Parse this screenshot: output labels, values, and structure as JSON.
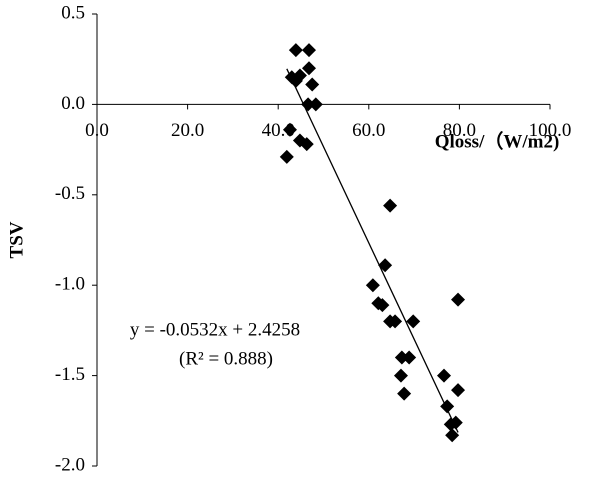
{
  "chart_data": {
    "type": "scatter",
    "x_label": "Qloss/（W/m2)",
    "y_label": "TSV",
    "xlim": [
      0,
      100
    ],
    "ylim": [
      -2.0,
      0.5
    ],
    "xticks": [
      {
        "value": 0,
        "label": "0.0"
      },
      {
        "value": 20,
        "label": "20.0"
      },
      {
        "value": 40,
        "label": "40.0"
      },
      {
        "value": 60,
        "label": "60.0"
      },
      {
        "value": 80,
        "label": "80.0"
      },
      {
        "value": 100,
        "label": "100.0"
      }
    ],
    "yticks": [
      {
        "value": 0.5,
        "label": "0.5"
      },
      {
        "value": 0,
        "label": "0.0"
      },
      {
        "value": -0.5,
        "label": "-0.5"
      },
      {
        "value": -1.0,
        "label": "-1.0"
      },
      {
        "value": -1.5,
        "label": "-1.5"
      },
      {
        "value": -2.0,
        "label": "-2.0"
      }
    ],
    "color": "#000000",
    "x": [
      43.9,
      46.8,
      46.8,
      44.8,
      43.0,
      43.9,
      47.5,
      46.6,
      48.3,
      42.6,
      44.8,
      46.3,
      41.9,
      64.7,
      63.6,
      60.9,
      62.1,
      63.0,
      64.7,
      65.8,
      69.8,
      79.7,
      67.3,
      68.9,
      67.1,
      67.8,
      76.6,
      77.3,
      79.7,
      78.1,
      79.2,
      78.4
    ],
    "values": [
      0.3,
      0.3,
      0.2,
      0.16,
      0.15,
      0.13,
      0.11,
      0.0,
      0.0,
      -0.14,
      -0.2,
      -0.22,
      -0.29,
      -0.56,
      -0.89,
      -1.0,
      -1.1,
      -1.11,
      -1.2,
      -1.2,
      -1.2,
      -1.08,
      -1.4,
      -1.4,
      -1.5,
      -1.6,
      -1.5,
      -1.67,
      -1.58,
      -1.77,
      -1.76,
      -1.83
    ],
    "trendline": {
      "equation": "y = -0.0532x + 2.4258",
      "r2": "(R² = 0.888)",
      "slope": -0.0532,
      "intercept": 2.4258
    }
  }
}
